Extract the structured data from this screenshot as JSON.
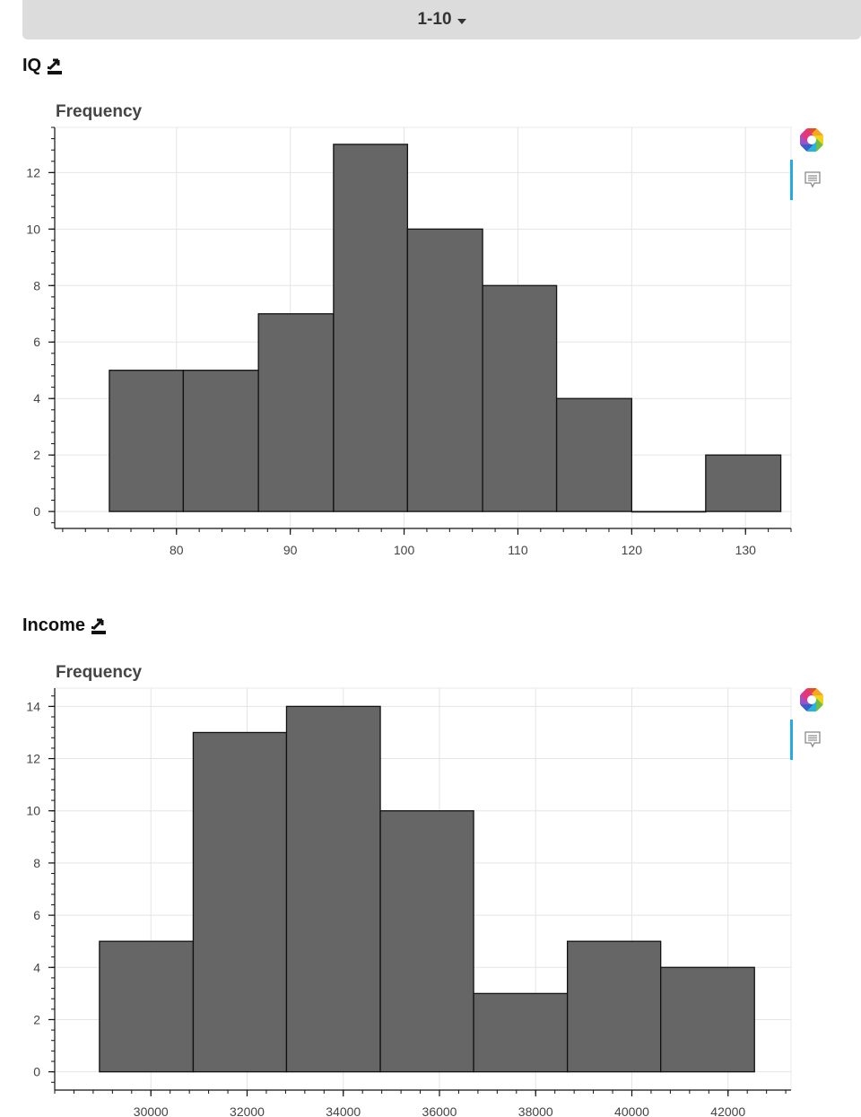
{
  "pager": {
    "label": "1-10"
  },
  "chart_data": [
    {
      "type": "bar",
      "title": "IQ",
      "ylabel": "Frequency",
      "xlabel": "",
      "bins": [
        {
          "left": 74.1,
          "right": 80.6,
          "count": 5
        },
        {
          "left": 80.6,
          "right": 87.2,
          "count": 5
        },
        {
          "left": 87.2,
          "right": 93.8,
          "count": 7
        },
        {
          "left": 93.8,
          "right": 100.3,
          "count": 13
        },
        {
          "left": 100.3,
          "right": 106.9,
          "count": 10
        },
        {
          "left": 106.9,
          "right": 113.4,
          "count": 8
        },
        {
          "left": 113.4,
          "right": 120.0,
          "count": 4
        },
        {
          "left": 120.0,
          "right": 126.5,
          "count": 0
        },
        {
          "left": 126.5,
          "right": 133.1,
          "count": 2
        }
      ],
      "xlim": [
        69.3,
        134.0
      ],
      "ylim": [
        -0.6,
        13.6
      ],
      "xticks": [
        80,
        90,
        100,
        110,
        120,
        130
      ],
      "xtick_labels": [
        "80",
        "90",
        "100",
        "110",
        "120",
        "130"
      ],
      "yticks": [
        0,
        2,
        4,
        6,
        8,
        10,
        12
      ],
      "ytick_labels": [
        "0",
        "2",
        "4",
        "6",
        "8",
        "10",
        "12"
      ],
      "grid": true,
      "bar_color": "#666666"
    },
    {
      "type": "bar",
      "title": "Income",
      "ylabel": "Frequency",
      "xlabel": "",
      "bins": [
        {
          "left": 28930,
          "right": 30880,
          "count": 5
        },
        {
          "left": 30880,
          "right": 32820,
          "count": 13
        },
        {
          "left": 32820,
          "right": 34770,
          "count": 14
        },
        {
          "left": 34770,
          "right": 36710,
          "count": 10
        },
        {
          "left": 36710,
          "right": 38660,
          "count": 3
        },
        {
          "left": 38660,
          "right": 40600,
          "count": 5
        },
        {
          "left": 40600,
          "right": 42550,
          "count": 4
        }
      ],
      "xlim": [
        28000,
        43310
      ],
      "ylim": [
        -0.7,
        14.7
      ],
      "xticks": [
        30000,
        32000,
        34000,
        36000,
        38000,
        40000,
        42000
      ],
      "xtick_labels": [
        "30000",
        "32000",
        "34000",
        "36000",
        "38000",
        "40000",
        "42000"
      ],
      "yticks": [
        0,
        2,
        4,
        6,
        8,
        10,
        12,
        14
      ],
      "ytick_labels": [
        "0",
        "2",
        "4",
        "6",
        "8",
        "10",
        "12",
        "14"
      ],
      "grid": true,
      "bar_color": "#666666"
    }
  ]
}
